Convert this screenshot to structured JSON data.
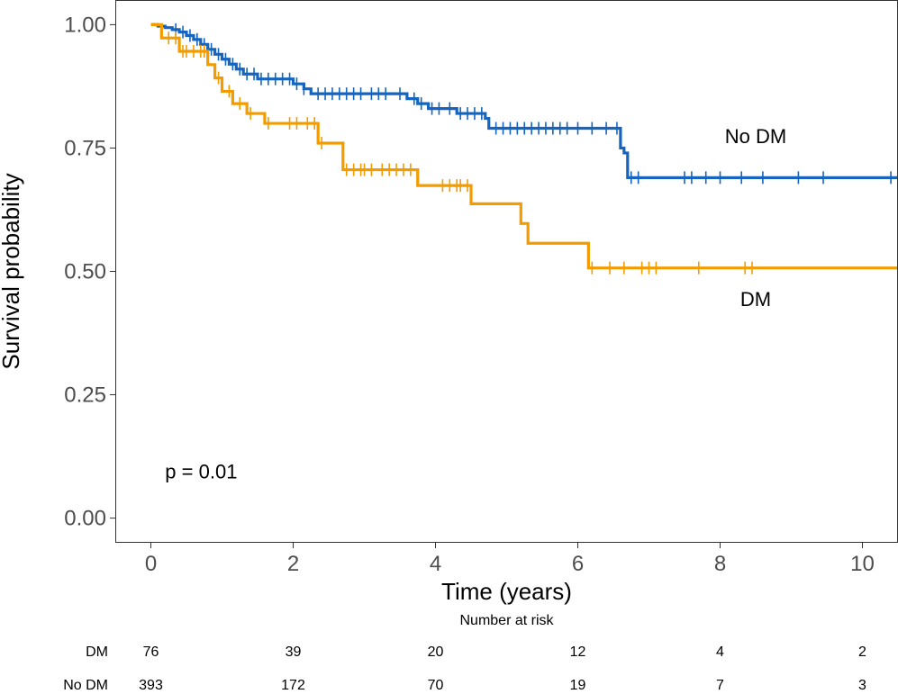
{
  "chart_data": {
    "type": "line",
    "subtype": "kaplan-meier",
    "xlabel": "Time (years)",
    "ylabel": "Survival probability",
    "xlim": [
      -0.5,
      10.5
    ],
    "ylim": [
      -0.05,
      1.05
    ],
    "xticks": [
      0,
      2,
      4,
      6,
      8,
      10
    ],
    "xtick_labels": [
      "0",
      "2",
      "4",
      "6",
      "8",
      "10"
    ],
    "yticks": [
      0,
      0.25,
      0.5,
      0.75,
      1.0
    ],
    "ytick_labels": [
      "0.00",
      "0.25",
      "0.50",
      "0.75",
      "1.00"
    ],
    "grid": false,
    "pvalue_label": "p = 0.01",
    "series": [
      {
        "name": "No DM",
        "label": "No DM",
        "color": "#1565c0",
        "label_pos": [
          8.5,
          0.76
        ],
        "steps": [
          [
            0,
            1.0
          ],
          [
            0.1,
            0.997
          ],
          [
            0.2,
            0.994
          ],
          [
            0.3,
            0.99
          ],
          [
            0.4,
            0.985
          ],
          [
            0.5,
            0.978
          ],
          [
            0.6,
            0.97
          ],
          [
            0.7,
            0.96
          ],
          [
            0.8,
            0.95
          ],
          [
            0.9,
            0.94
          ],
          [
            1.0,
            0.93
          ],
          [
            1.1,
            0.92
          ],
          [
            1.2,
            0.91
          ],
          [
            1.3,
            0.9
          ],
          [
            1.5,
            0.89
          ],
          [
            2.0,
            0.88
          ],
          [
            2.15,
            0.87
          ],
          [
            2.25,
            0.86
          ],
          [
            3.6,
            0.85
          ],
          [
            3.75,
            0.84
          ],
          [
            3.9,
            0.83
          ],
          [
            4.3,
            0.82
          ],
          [
            4.7,
            0.81
          ],
          [
            4.75,
            0.79
          ],
          [
            6.6,
            0.75
          ],
          [
            6.65,
            0.74
          ],
          [
            6.7,
            0.69
          ],
          [
            10.5,
            0.69
          ]
        ],
        "censor": [
          0.35,
          0.45,
          0.55,
          0.65,
          0.75,
          0.85,
          0.95,
          1.05,
          1.15,
          1.25,
          1.35,
          1.45,
          1.55,
          1.65,
          1.75,
          1.85,
          1.95,
          2.05,
          2.15,
          2.35,
          2.45,
          2.55,
          2.65,
          2.75,
          2.85,
          2.95,
          3.1,
          3.2,
          3.3,
          3.5,
          3.7,
          3.8,
          3.95,
          4.05,
          4.2,
          4.35,
          4.45,
          4.55,
          4.65,
          4.85,
          4.95,
          5.05,
          5.15,
          5.25,
          5.35,
          5.45,
          5.55,
          5.65,
          5.75,
          5.85,
          6.0,
          6.2,
          6.4,
          6.55,
          6.75,
          6.85,
          7.5,
          7.6,
          7.8,
          8.0,
          8.3,
          8.6,
          9.1,
          9.45,
          10.4
        ]
      },
      {
        "name": "DM",
        "label": "DM",
        "color": "#f39c00",
        "label_pos": [
          8.5,
          0.43
        ],
        "steps": [
          [
            0,
            1.0
          ],
          [
            0.15,
            0.973
          ],
          [
            0.4,
            0.946
          ],
          [
            0.8,
            0.919
          ],
          [
            0.9,
            0.892
          ],
          [
            1.0,
            0.865
          ],
          [
            1.15,
            0.84
          ],
          [
            1.35,
            0.82
          ],
          [
            1.6,
            0.8
          ],
          [
            1.8,
            0.8
          ],
          [
            2.2,
            0.8
          ],
          [
            2.35,
            0.76
          ],
          [
            2.7,
            0.706
          ],
          [
            3.75,
            0.674
          ],
          [
            4.5,
            0.637
          ],
          [
            5.2,
            0.597
          ],
          [
            5.3,
            0.557
          ],
          [
            6.15,
            0.507
          ],
          [
            10.5,
            0.507
          ]
        ],
        "censor": [
          0.25,
          0.35,
          0.45,
          0.5,
          0.6,
          0.7,
          0.75,
          0.95,
          1.1,
          1.25,
          1.4,
          1.65,
          1.95,
          2.05,
          2.2,
          2.3,
          2.4,
          2.75,
          2.85,
          2.95,
          3.0,
          3.1,
          3.25,
          3.35,
          3.45,
          3.55,
          3.65,
          4.1,
          4.2,
          4.3,
          4.35,
          4.45,
          6.2,
          6.45,
          6.65,
          6.9,
          7.0,
          7.1,
          7.7,
          8.35,
          8.45
        ]
      }
    ]
  },
  "risk_table": {
    "title": "Number at risk",
    "times": [
      0,
      2,
      4,
      6,
      8,
      10
    ],
    "rows": [
      {
        "label": "DM",
        "counts": [
          "76",
          "39",
          "20",
          "12",
          "4",
          "2"
        ]
      },
      {
        "label": "No DM",
        "counts": [
          "393",
          "172",
          "70",
          "19",
          "7",
          "3"
        ]
      }
    ]
  }
}
